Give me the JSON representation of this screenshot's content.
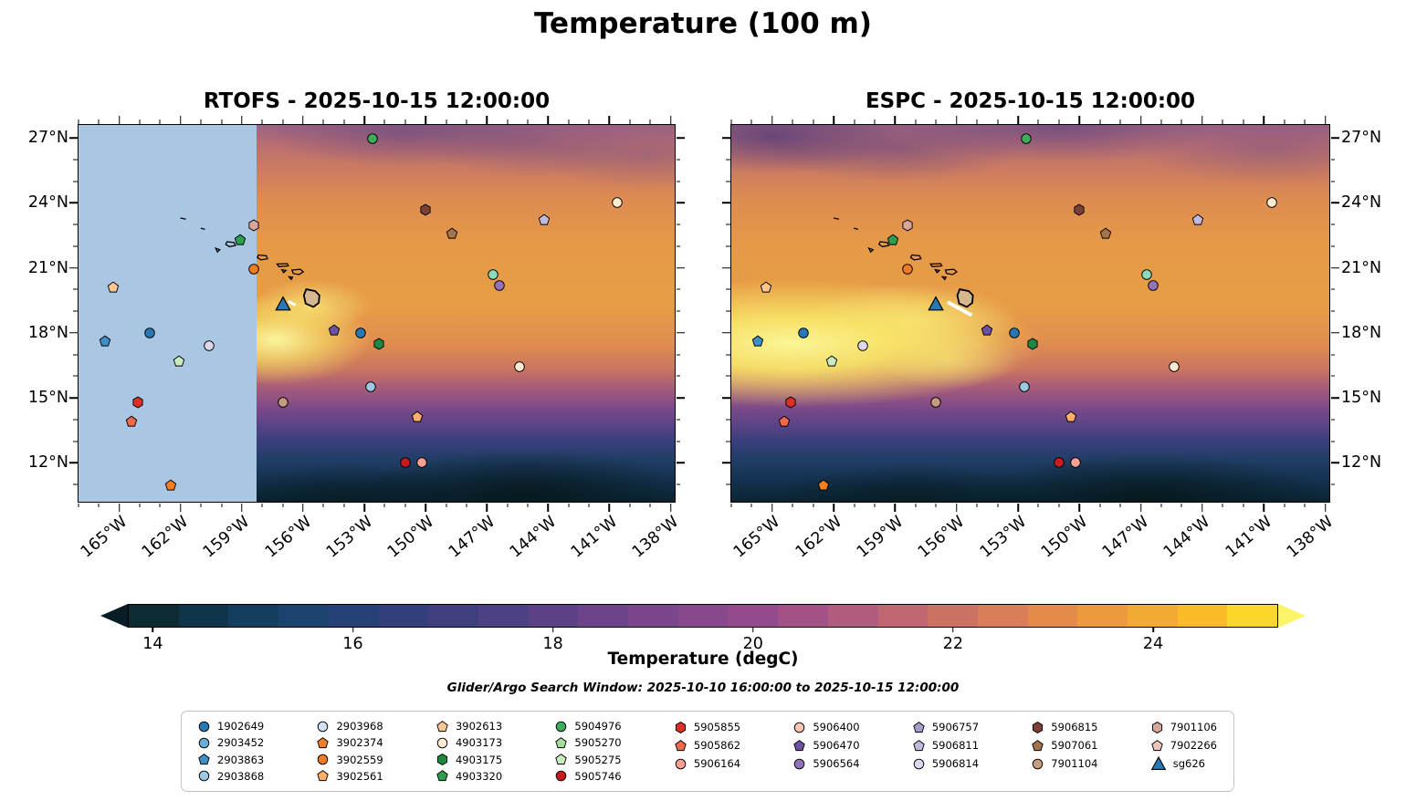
{
  "chart_data": {
    "type": "heatmap",
    "title": "Temperature (100 m)",
    "panels": [
      {
        "name": "rtofs",
        "title": "RTOFS - 2025-10-15 12:00:00",
        "no_data_mask": {
          "lon_max": -158.3,
          "color": "#a9c6e3"
        }
      },
      {
        "name": "espc",
        "title": "ESPC - 2025-10-15 12:00:00"
      }
    ],
    "axes": {
      "lon_min": -167.0,
      "lon_max": -137.8,
      "lat_min": 10.2,
      "lat_max": 27.6,
      "x_ticks": [
        {
          "label": "165°W",
          "lon": -165
        },
        {
          "label": "162°W",
          "lon": -162
        },
        {
          "label": "159°W",
          "lon": -159
        },
        {
          "label": "156°W",
          "lon": -156
        },
        {
          "label": "153°W",
          "lon": -153
        },
        {
          "label": "150°W",
          "lon": -150
        },
        {
          "label": "147°W",
          "lon": -147
        },
        {
          "label": "144°W",
          "lon": -144
        },
        {
          "label": "141°W",
          "lon": -141
        },
        {
          "label": "138°W",
          "lon": -138
        }
      ],
      "y_ticks": [
        {
          "label": "27°N",
          "lat": 27
        },
        {
          "label": "24°N",
          "lat": 24
        },
        {
          "label": "21°N",
          "lat": 21
        },
        {
          "label": "18°N",
          "lat": 18
        },
        {
          "label": "15°N",
          "lat": 15
        },
        {
          "label": "12°N",
          "lat": 12
        }
      ]
    },
    "colorbar": {
      "label": "Temperature (degC)",
      "vmin": 13.75,
      "vmax": 25.25,
      "ticks": [
        {
          "label": "14",
          "value": 14
        },
        {
          "label": "16",
          "value": 16
        },
        {
          "label": "18",
          "value": 18
        },
        {
          "label": "20",
          "value": 20
        },
        {
          "label": "22",
          "value": 22
        },
        {
          "label": "24",
          "value": 24
        }
      ],
      "colors": [
        "#0d2b33",
        "#10344a",
        "#143e5e",
        "#1a436e",
        "#254178",
        "#333e7d",
        "#413e80",
        "#4f3f83",
        "#5d4186",
        "#6b4489",
        "#79468b",
        "#87488c",
        "#954b8b",
        "#a35187",
        "#b15b7e",
        "#bf6672",
        "#cc7265",
        "#d87e58",
        "#e28b4b",
        "#ec9a3e",
        "#f3aa32",
        "#f9bb28",
        "#fdd62a"
      ],
      "under": "#081d24",
      "over": "#fbf468"
    },
    "subtitle": "Glider/Argo Search Window: 2025-10-10 16:00:00 to 2025-10-15 12:00:00",
    "legend": {
      "columns": [
        [
          {
            "id": "1902649",
            "shape": "circle",
            "color": "#2878b5"
          },
          {
            "id": "2903452",
            "shape": "circle",
            "color": "#6aaed6"
          },
          {
            "id": "2903863",
            "shape": "pentagon",
            "color": "#3f8fc5"
          },
          {
            "id": "2903868",
            "shape": "circle",
            "color": "#9dcae1"
          }
        ],
        [
          {
            "id": "2903968",
            "shape": "circle",
            "color": "#cfe1f2"
          },
          {
            "id": "3902374",
            "shape": "pentagon",
            "color": "#f57e20"
          },
          {
            "id": "3902559",
            "shape": "circle",
            "color": "#ef7d1f"
          },
          {
            "id": "3902561",
            "shape": "pentagon",
            "color": "#fdae6b"
          }
        ],
        [
          {
            "id": "3902613",
            "shape": "pentagon",
            "color": "#fdc692"
          },
          {
            "id": "4903173",
            "shape": "circle",
            "color": "#feecd2"
          },
          {
            "id": "4903175",
            "shape": "hexagon",
            "color": "#1f8742"
          },
          {
            "id": "4903320",
            "shape": "pentagon",
            "color": "#2d9e4f"
          }
        ],
        [
          {
            "id": "5904976",
            "shape": "circle",
            "color": "#41ab5d"
          },
          {
            "id": "5905270",
            "shape": "pentagon",
            "color": "#a5dc9e"
          },
          {
            "id": "5905275",
            "shape": "pentagon",
            "color": "#c9eabf"
          },
          {
            "id": "5905746",
            "shape": "circle",
            "color": "#c81a1f"
          }
        ],
        [
          {
            "id": "5905855",
            "shape": "hexagon",
            "color": "#dc2f26"
          },
          {
            "id": "5905862",
            "shape": "pentagon",
            "color": "#ef6a4c"
          },
          {
            "id": "5906164",
            "shape": "circle",
            "color": "#fba193"
          }
        ],
        [
          {
            "id": "5906400",
            "shape": "circle",
            "color": "#fcc4b3"
          },
          {
            "id": "5906470",
            "shape": "pentagon",
            "color": "#6f51a1"
          },
          {
            "id": "5906564",
            "shape": "circle",
            "color": "#9374bc"
          }
        ],
        [
          {
            "id": "5906757",
            "shape": "pentagon",
            "color": "#a79bcc"
          },
          {
            "id": "5906811",
            "shape": "pentagon",
            "color": "#c2badd"
          },
          {
            "id": "5906814",
            "shape": "circle",
            "color": "#dcd7ec"
          }
        ],
        [
          {
            "id": "5906815",
            "shape": "hexagon",
            "color": "#7c4038"
          },
          {
            "id": "5907061",
            "shape": "pentagon",
            "color": "#a4754a"
          },
          {
            "id": "7901104",
            "shape": "circle",
            "color": "#c69c80"
          }
        ],
        [
          {
            "id": "7901106",
            "shape": "hexagon",
            "color": "#d8a79c"
          },
          {
            "id": "7902266",
            "shape": "pentagon",
            "color": "#ecc6ba"
          },
          {
            "id": "sg626",
            "shape": "triangle",
            "color": "#2878b5"
          }
        ]
      ]
    },
    "markers": [
      {
        "shape": "circle",
        "color": "#41ab5d",
        "lon": -152.6,
        "lat": 26.95
      },
      {
        "shape": "hexagon",
        "color": "#7c4038",
        "lon": -150.0,
        "lat": 23.7
      },
      {
        "shape": "circle",
        "color": "#feecd2",
        "lon": -140.6,
        "lat": 24.0
      },
      {
        "shape": "pentagon",
        "color": "#c2badd",
        "lon": -144.2,
        "lat": 23.2
      },
      {
        "shape": "hexagon",
        "color": "#d8a79c",
        "lon": -158.4,
        "lat": 22.95
      },
      {
        "shape": "pentagon",
        "color": "#2d9e4f",
        "lon": -159.1,
        "lat": 22.3
      },
      {
        "shape": "pentagon",
        "color": "#a4754a",
        "lon": -148.7,
        "lat": 22.6
      },
      {
        "shape": "circle",
        "color": "#ef7d1f",
        "lon": -158.4,
        "lat": 20.95
      },
      {
        "shape": "circle",
        "color": "#8fd8b8",
        "lon": -146.7,
        "lat": 20.7
      },
      {
        "shape": "circle",
        "color": "#9374bc",
        "lon": -146.4,
        "lat": 20.2
      },
      {
        "shape": "pentagon",
        "color": "#fdc692",
        "lon": -165.3,
        "lat": 20.1
      },
      {
        "shape": "pentagon",
        "color": "#3f8fc5",
        "lon": -165.7,
        "lat": 17.6
      },
      {
        "shape": "circle",
        "color": "#2878b5",
        "lon": -163.5,
        "lat": 18.0
      },
      {
        "shape": "pentagon",
        "color": "#6f51a1",
        "lon": -154.5,
        "lat": 18.1
      },
      {
        "shape": "circle",
        "color": "#2878b5",
        "lon": -153.2,
        "lat": 18.0
      },
      {
        "shape": "hexagon",
        "color": "#1f8742",
        "lon": -152.3,
        "lat": 17.5
      },
      {
        "shape": "circle",
        "color": "#dcd7ec",
        "lon": -160.6,
        "lat": 17.4
      },
      {
        "shape": "pentagon",
        "color": "#c9eabf",
        "lon": -162.1,
        "lat": 16.7
      },
      {
        "shape": "circle",
        "color": "#feecd2",
        "lon": -145.4,
        "lat": 16.45
      },
      {
        "shape": "circle",
        "color": "#9dcae1",
        "lon": -152.7,
        "lat": 15.5
      },
      {
        "shape": "hexagon",
        "color": "#dc2f26",
        "lon": -164.1,
        "lat": 14.8
      },
      {
        "shape": "circle",
        "color": "#c69c80",
        "lon": -157.0,
        "lat": 14.8
      },
      {
        "shape": "pentagon",
        "color": "#ef6a4c",
        "lon": -164.4,
        "lat": 13.9
      },
      {
        "shape": "pentagon",
        "color": "#fdae6b",
        "lon": -150.4,
        "lat": 14.1
      },
      {
        "shape": "circle",
        "color": "#c81a1f",
        "lon": -151.0,
        "lat": 12.0
      },
      {
        "shape": "circle",
        "color": "#fba193",
        "lon": -150.2,
        "lat": 12.0
      },
      {
        "shape": "pentagon",
        "color": "#f57e20",
        "lon": -162.5,
        "lat": 10.95
      },
      {
        "shape": "triangle",
        "color": "#2878b5",
        "lon": -157.0,
        "lat": 19.35,
        "id": "sg626"
      }
    ]
  }
}
